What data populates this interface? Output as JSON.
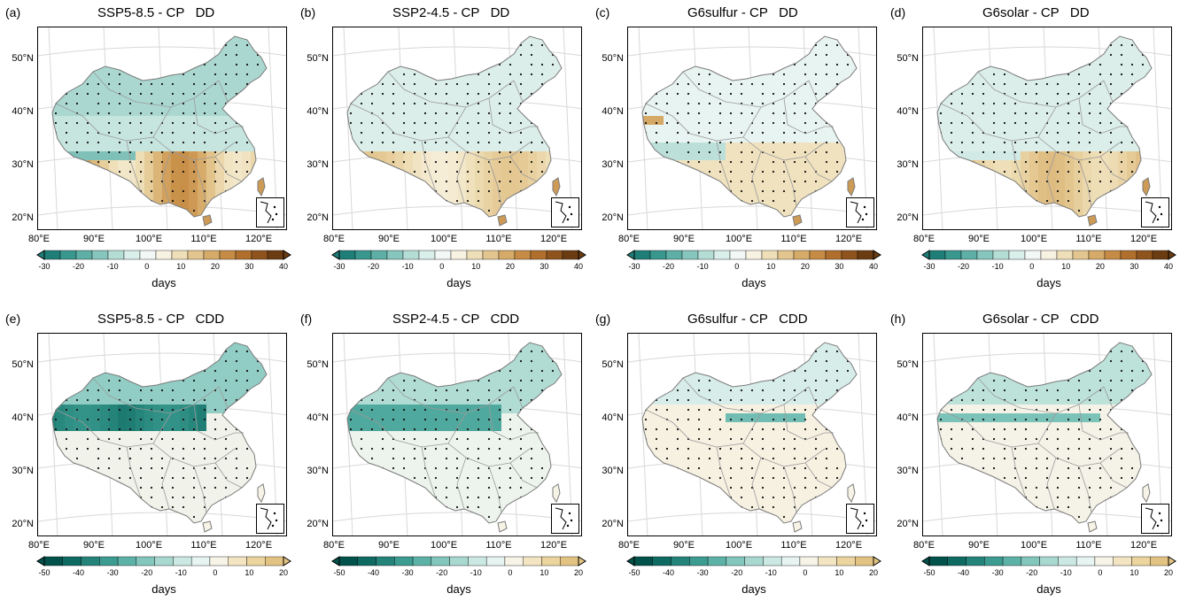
{
  "panels": [
    {
      "tag": "(a)",
      "scenario": "SSP5-8.5 - CP",
      "index": "DD",
      "scale": "dd",
      "pattern": "a"
    },
    {
      "tag": "(b)",
      "scenario": "SSP2-4.5 - CP",
      "index": "DD",
      "scale": "dd",
      "pattern": "b"
    },
    {
      "tag": "(c)",
      "scenario": "G6sulfur - CP",
      "index": "DD",
      "scale": "dd",
      "pattern": "c"
    },
    {
      "tag": "(d)",
      "scenario": "G6solar - CP",
      "index": "DD",
      "scale": "dd",
      "pattern": "d"
    },
    {
      "tag": "(e)",
      "scenario": "SSP5-8.5 - CP",
      "index": "CDD",
      "scale": "cdd",
      "pattern": "e"
    },
    {
      "tag": "(f)",
      "scenario": "SSP2-4.5 - CP",
      "index": "CDD",
      "scale": "cdd",
      "pattern": "f"
    },
    {
      "tag": "(g)",
      "scenario": "G6sulfur - CP",
      "index": "CDD",
      "scale": "cdd",
      "pattern": "g"
    },
    {
      "tag": "(h)",
      "scenario": "G6solar - CP",
      "index": "CDD",
      "scale": "cdd",
      "pattern": "h"
    }
  ],
  "lat_labels": [
    "50°N",
    "40°N",
    "30°N",
    "20°N"
  ],
  "lon_labels": [
    "80°E",
    "90°E",
    "100°E",
    "110°E",
    "120°E"
  ],
  "colorbars": {
    "dd": {
      "ticks": [
        "-30",
        "-20",
        "-10",
        "0",
        "10",
        "20",
        "30",
        "40"
      ],
      "colors": [
        "#1f7f78",
        "#3a978e",
        "#5eafa5",
        "#87c6bd",
        "#b4ddd5",
        "#daeeea",
        "#f2f8f6",
        "#f8f2e2",
        "#efdfb8",
        "#e3c68f",
        "#d6aa68",
        "#c68c45",
        "#b06f2d",
        "#8f541e",
        "#6b3c12"
      ],
      "label": "days"
    },
    "cdd": {
      "ticks": [
        "-50",
        "-40",
        "-30",
        "-20",
        "-10",
        "0",
        "10",
        "20"
      ],
      "colors": [
        "#00524b",
        "#0f6b62",
        "#25847a",
        "#3d9c91",
        "#5db2a7",
        "#82c6bc",
        "#a8d8cf",
        "#cbe8e2",
        "#e7f4f1",
        "#f7f3e6",
        "#f3e4c2",
        "#ecd49f",
        "#e3c381"
      ],
      "label": "days"
    }
  },
  "colors": {
    "frame": "#000000",
    "border": "#9a9a9a",
    "stipple": "#111111"
  }
}
